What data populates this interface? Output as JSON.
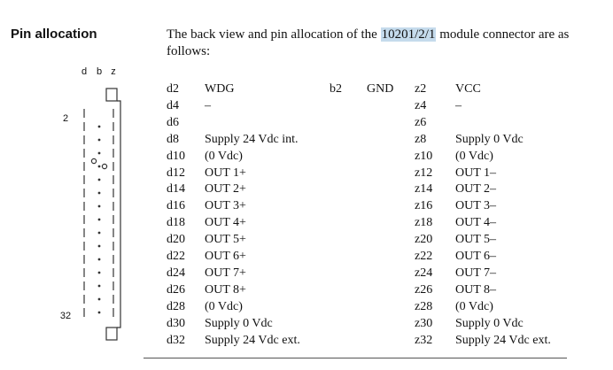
{
  "heading": "Pin allocation",
  "intro": {
    "before": "The back view and pin allocation of the ",
    "highlight": "10201/2/1",
    "after": " module connector are as follows:"
  },
  "connector": {
    "column_labels": [
      "d",
      "b",
      "z"
    ],
    "first_pin": "2",
    "last_pin": "32"
  },
  "pins": [
    {
      "d_pin": "d2",
      "d_signal": "WDG",
      "b_pin": "b2",
      "b_signal": "GND",
      "z_pin": "z2",
      "z_signal": "VCC"
    },
    {
      "d_pin": "d4",
      "d_signal": "–",
      "z_pin": "z4",
      "z_signal": "–"
    },
    {
      "d_pin": "d6",
      "d_signal": "",
      "z_pin": "z6",
      "z_signal": ""
    },
    {
      "d_pin": "d8",
      "d_signal": "Supply 24 Vdc int.",
      "z_pin": "z8",
      "z_signal": "Supply 0 Vdc"
    },
    {
      "d_pin": "d10",
      "d_signal": "(0 Vdc)",
      "z_pin": "z10",
      "z_signal": "(0 Vdc)"
    },
    {
      "d_pin": "d12",
      "d_signal": "OUT 1+",
      "z_pin": "z12",
      "z_signal": "OUT 1–"
    },
    {
      "d_pin": "d14",
      "d_signal": "OUT 2+",
      "z_pin": "z14",
      "z_signal": "OUT 2–"
    },
    {
      "d_pin": "d16",
      "d_signal": "OUT 3+",
      "z_pin": "z16",
      "z_signal": "OUT 3–"
    },
    {
      "d_pin": "d18",
      "d_signal": "OUT 4+",
      "z_pin": "z18",
      "z_signal": "OUT 4–"
    },
    {
      "d_pin": "d20",
      "d_signal": "OUT 5+",
      "z_pin": "z20",
      "z_signal": "OUT 5–"
    },
    {
      "d_pin": "d22",
      "d_signal": "OUT 6+",
      "z_pin": "z22",
      "z_signal": "OUT 6–"
    },
    {
      "d_pin": "d24",
      "d_signal": "OUT 7+",
      "z_pin": "z24",
      "z_signal": "OUT 7–"
    },
    {
      "d_pin": "d26",
      "d_signal": "OUT 8+",
      "z_pin": "z26",
      "z_signal": "OUT 8–"
    },
    {
      "d_pin": "d28",
      "d_signal": "(0 Vdc)",
      "z_pin": "z28",
      "z_signal": "(0 Vdc)"
    },
    {
      "d_pin": "d30",
      "d_signal": "Supply 0 Vdc",
      "z_pin": "z30",
      "z_signal": "Supply 0 Vdc"
    },
    {
      "d_pin": "d32",
      "d_signal": "Supply 24 Vdc ext.",
      "z_pin": "z32",
      "z_signal": "Supply 24 Vdc ext."
    }
  ],
  "colors": {
    "highlight": "#c5dbec",
    "text": "#111111"
  }
}
